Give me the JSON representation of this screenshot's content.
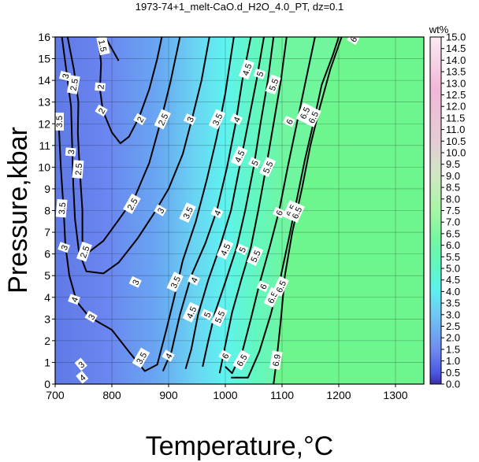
{
  "chart_data": {
    "type": "heatmap",
    "title": "1973-74+1_melt-CaO.d_H2O_4.0_PT, dz=0.1",
    "xlabel": "Temperature,°C",
    "ylabel": "Pressure,kbar",
    "xlim": [
      700,
      1350
    ],
    "ylim": [
      0,
      16
    ],
    "xticks": [
      "700",
      "800",
      "900",
      "1000",
      "1100",
      "1200",
      "1300"
    ],
    "yticks": [
      "0",
      "1",
      "2",
      "3",
      "4",
      "5",
      "6",
      "7",
      "8",
      "9",
      "10",
      "11",
      "12",
      "13",
      "14",
      "15",
      "16"
    ],
    "grid": true,
    "colorbar": {
      "unit": "wt%",
      "range": [
        0,
        15
      ],
      "ticks": [
        "0.0",
        "0.5",
        "1.0",
        "1.5",
        "2.0",
        "2.5",
        "3.0",
        "3.5",
        "4.0",
        "4.5",
        "5.0",
        "5.5",
        "6.0",
        "6.5",
        "7.0",
        "7.5",
        "8.0",
        "8.5",
        "9.0",
        "9.5",
        "10.0",
        "10.5",
        "11.0",
        "11.5",
        "12.0",
        "12.5",
        "13.0",
        "13.5",
        "14.0",
        "14.5",
        "15.0"
      ]
    },
    "contours": [
      {
        "level": "1.5",
        "points": [
          [
            788,
            16
          ],
          [
            797,
            15.6
          ],
          [
            812,
            14.9
          ]
        ]
      },
      {
        "level": "2",
        "points": [
          [
            776,
            16
          ],
          [
            781,
            14.8
          ],
          [
            779,
            13.6
          ],
          [
            784,
            12.6
          ],
          [
            800,
            11.6
          ],
          [
            815,
            11.1
          ],
          [
            830,
            11.4
          ],
          [
            848,
            12.3
          ],
          [
            866,
            13.6
          ],
          [
            880,
            15
          ],
          [
            888,
            16
          ]
        ]
      },
      {
        "level": "2.5",
        "points": [
          [
            722,
            16
          ],
          [
            733,
            14.5
          ],
          [
            741,
            13
          ],
          [
            740,
            11.6
          ],
          [
            743,
            10
          ],
          [
            748,
            8
          ],
          [
            748,
            6.6
          ],
          [
            760,
            6.1
          ],
          [
            785,
            6.6
          ],
          [
            810,
            7.5
          ],
          [
            840,
            8.6
          ],
          [
            866,
            10.2
          ],
          [
            886,
            12.1
          ],
          [
            903,
            13.9
          ],
          [
            920,
            16
          ]
        ]
      },
      {
        "level": "3",
        "points": [
          [
            712,
            16
          ],
          [
            720,
            14.4
          ],
          [
            728,
            12.8
          ],
          [
            730,
            11
          ],
          [
            732,
            9.2
          ],
          [
            735,
            7.6
          ],
          [
            742,
            6.1
          ],
          [
            755,
            5.2
          ],
          [
            785,
            5.1
          ],
          [
            812,
            5.6
          ],
          [
            845,
            6.7
          ],
          [
            875,
            7.9
          ],
          [
            900,
            9
          ],
          [
            925,
            10.6
          ],
          [
            942,
            12.3
          ],
          [
            958,
            14
          ],
          [
            972,
            16
          ]
        ]
      },
      {
        "level": "3.5",
        "points": [
          [
            706,
            12.2
          ],
          [
            710,
            10
          ],
          [
            715,
            8
          ],
          [
            718,
            6.4
          ],
          [
            725,
            5
          ],
          [
            738,
            3.8
          ],
          [
            760,
            3.1
          ],
          [
            800,
            2.5
          ],
          [
            830,
            1.5
          ],
          [
            858,
            0.6
          ],
          [
            880,
            0.9
          ],
          [
            896,
            2.5
          ],
          [
            910,
            4
          ],
          [
            925,
            5.7
          ],
          [
            948,
            7.5
          ],
          [
            968,
            9.5
          ],
          [
            985,
            11.4
          ],
          [
            1000,
            13.4
          ],
          [
            1015,
            16
          ]
        ]
      },
      {
        "level": "4",
        "points": [
          [
            890,
            0.6
          ],
          [
            905,
            1.5
          ],
          [
            920,
            3.2
          ],
          [
            940,
            5
          ],
          [
            965,
            6.5
          ],
          [
            985,
            8
          ],
          [
            1003,
            10
          ],
          [
            1018,
            12
          ],
          [
            1030,
            14
          ],
          [
            1045,
            16
          ]
        ]
      },
      {
        "level": "4.5",
        "points": [
          [
            930,
            0.7
          ],
          [
            940,
            1.6
          ],
          [
            952,
            3.2
          ],
          [
            970,
            4.8
          ],
          [
            990,
            6.3
          ],
          [
            1010,
            8
          ],
          [
            1025,
            10
          ],
          [
            1040,
            12
          ],
          [
            1055,
            14
          ],
          [
            1068,
            16
          ]
        ]
      },
      {
        "level": "5",
        "points": [
          [
            960,
            0.8
          ],
          [
            970,
            2
          ],
          [
            982,
            3.3
          ],
          [
            1000,
            4.7
          ],
          [
            1020,
            6.3
          ],
          [
            1035,
            8
          ],
          [
            1050,
            10
          ],
          [
            1062,
            12
          ],
          [
            1075,
            14
          ],
          [
            1085,
            16
          ]
        ]
      },
      {
        "level": "5.5",
        "points": [
          [
            990,
            0.5
          ],
          [
            1000,
            1.8
          ],
          [
            1012,
            3.3
          ],
          [
            1028,
            4.8
          ],
          [
            1045,
            6.3
          ],
          [
            1058,
            8
          ],
          [
            1072,
            10
          ],
          [
            1085,
            12
          ],
          [
            1098,
            14
          ],
          [
            1108,
            16
          ]
        ]
      },
      {
        "level": "6",
        "points": [
          [
            1000,
            0.8
          ],
          [
            1012,
            0.5
          ],
          [
            1030,
            1.5
          ],
          [
            1045,
            3
          ],
          [
            1060,
            4.6
          ],
          [
            1078,
            6.3
          ],
          [
            1095,
            8
          ],
          [
            1110,
            10
          ],
          [
            1126,
            12
          ],
          [
            1142,
            14
          ],
          [
            1158,
            16
          ]
        ]
      },
      {
        "level": "6.5",
        "points": [
          [
            1010,
            0.3
          ],
          [
            1040,
            0.3
          ],
          [
            1060,
            1.5
          ],
          [
            1080,
            3.2
          ],
          [
            1098,
            5
          ],
          [
            1112,
            6.7
          ],
          [
            1126,
            8.5
          ],
          [
            1140,
            10.3
          ],
          [
            1155,
            12
          ],
          [
            1170,
            13.8
          ],
          [
            1190,
            15.2
          ],
          [
            1200,
            16
          ]
        ]
      },
      {
        "level": "6.9",
        "points": [
          [
            1085,
            0
          ],
          [
            1090,
            1
          ],
          [
            1098,
            3
          ],
          [
            1105,
            5
          ],
          [
            1118,
            7
          ],
          [
            1135,
            9
          ],
          [
            1150,
            11
          ],
          [
            1165,
            12.6
          ],
          [
            1185,
            14.5
          ],
          [
            1205,
            16
          ]
        ]
      }
    ],
    "contour_labels": [
      {
        "text": "1.5",
        "x": 784,
        "y": 15.6,
        "rot": 78
      },
      {
        "text": "3",
        "x": 718,
        "y": 14.2,
        "rot": -75
      },
      {
        "text": "2.5",
        "x": 733,
        "y": 13.8,
        "rot": -80
      },
      {
        "text": "2",
        "x": 780,
        "y": 13.7,
        "rot": -85
      },
      {
        "text": "2",
        "x": 782,
        "y": 12.6,
        "rot": -60
      },
      {
        "text": "3.5",
        "x": 707,
        "y": 12.1,
        "rot": -90
      },
      {
        "text": "2",
        "x": 850,
        "y": 12.2,
        "rot": -60
      },
      {
        "text": "2.5",
        "x": 890,
        "y": 12.2,
        "rot": -65
      },
      {
        "text": "3",
        "x": 938,
        "y": 12.2,
        "rot": -65
      },
      {
        "text": "3.5",
        "x": 986,
        "y": 12.2,
        "rot": -65
      },
      {
        "text": "4",
        "x": 1020,
        "y": 12.2,
        "rot": -65
      },
      {
        "text": "3",
        "x": 728,
        "y": 10.7,
        "rot": -85
      },
      {
        "text": "2.5",
        "x": 741,
        "y": 9.9,
        "rot": -85
      },
      {
        "text": "4.5",
        "x": 1025,
        "y": 10.5,
        "rot": -65
      },
      {
        "text": "5",
        "x": 1052,
        "y": 10.2,
        "rot": -65
      },
      {
        "text": "5.5",
        "x": 1075,
        "y": 10.0,
        "rot": -65
      },
      {
        "text": "6",
        "x": 1113,
        "y": 12.1,
        "rot": -65
      },
      {
        "text": "6.5",
        "x": 1140,
        "y": 12.5,
        "rot": -65
      },
      {
        "text": "6.5",
        "x": 1155,
        "y": 12.3,
        "rot": -65
      },
      {
        "text": "6",
        "x": 1226,
        "y": 15.9,
        "rot": -60
      },
      {
        "text": "5",
        "x": 1061,
        "y": 14.3,
        "rot": -70
      },
      {
        "text": "4.5",
        "x": 1038,
        "y": 14.5,
        "rot": -70
      },
      {
        "text": "5.5",
        "x": 1085,
        "y": 13.8,
        "rot": -70
      },
      {
        "text": "3.5",
        "x": 712,
        "y": 8.1,
        "rot": -85
      },
      {
        "text": "2.5",
        "x": 836,
        "y": 8.3,
        "rot": -60
      },
      {
        "text": "3",
        "x": 886,
        "y": 8.0,
        "rot": -60
      },
      {
        "text": "3.5",
        "x": 934,
        "y": 7.9,
        "rot": -65
      },
      {
        "text": "4",
        "x": 986,
        "y": 7.9,
        "rot": -65
      },
      {
        "text": "6",
        "x": 1095,
        "y": 7.9,
        "rot": -65
      },
      {
        "text": "6.5",
        "x": 1116,
        "y": 8.0,
        "rot": -65
      },
      {
        "text": "6.5",
        "x": 1126,
        "y": 7.9,
        "rot": -65
      },
      {
        "text": "3",
        "x": 716,
        "y": 6.3,
        "rot": -70
      },
      {
        "text": "2.5",
        "x": 752,
        "y": 6.1,
        "rot": -70
      },
      {
        "text": "4.5",
        "x": 1000,
        "y": 6.2,
        "rot": -65
      },
      {
        "text": "5",
        "x": 1030,
        "y": 6.2,
        "rot": -65
      },
      {
        "text": "5.5",
        "x": 1053,
        "y": 5.9,
        "rot": -65
      },
      {
        "text": "3",
        "x": 842,
        "y": 4.7,
        "rot": -65
      },
      {
        "text": "3.5",
        "x": 912,
        "y": 4.7,
        "rot": -65
      },
      {
        "text": "4",
        "x": 945,
        "y": 4.8,
        "rot": -65
      },
      {
        "text": "6",
        "x": 1067,
        "y": 4.5,
        "rot": -65
      },
      {
        "text": "6.5",
        "x": 1083,
        "y": 4.0,
        "rot": -65
      },
      {
        "text": "6.5",
        "x": 1098,
        "y": 4.5,
        "rot": -65
      },
      {
        "text": "4",
        "x": 734,
        "y": 3.9,
        "rot": -70
      },
      {
        "text": "3",
        "x": 764,
        "y": 3.1,
        "rot": -60
      },
      {
        "text": "4.5",
        "x": 940,
        "y": 3.3,
        "rot": -65
      },
      {
        "text": "5",
        "x": 968,
        "y": 3.2,
        "rot": -65
      },
      {
        "text": "5.5",
        "x": 990,
        "y": 3.1,
        "rot": -65
      },
      {
        "text": "3.5",
        "x": 852,
        "y": 1.2,
        "rot": -60
      },
      {
        "text": "4",
        "x": 900,
        "y": 1.3,
        "rot": -60
      },
      {
        "text": "6",
        "x": 1000,
        "y": 1.3,
        "rot": -60
      },
      {
        "text": "6.5",
        "x": 1029,
        "y": 1.1,
        "rot": -60
      },
      {
        "text": "6.9",
        "x": 1090,
        "y": 1.1,
        "rot": -80
      },
      {
        "text": "3",
        "x": 746,
        "y": 0.9,
        "rot": -40
      },
      {
        "text": "4",
        "x": 748,
        "y": 0.3,
        "rot": -40
      }
    ]
  }
}
